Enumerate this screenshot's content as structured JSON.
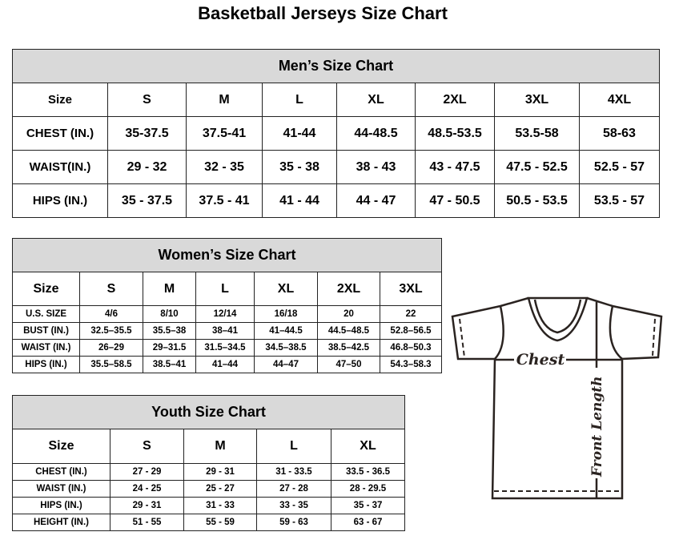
{
  "title": "Basketball Jerseys Size Chart",
  "men": {
    "title": "Men’s Size Chart",
    "header": [
      "Size",
      "S",
      "M",
      "L",
      "XL",
      "2XL",
      "3XL",
      "4XL"
    ],
    "rows": [
      [
        "CHEST (IN.)",
        "35-37.5",
        "37.5-41",
        "41-44",
        "44-48.5",
        "48.5-53.5",
        "53.5-58",
        "58-63"
      ],
      [
        "WAIST(IN.)",
        "29 - 32",
        "32 - 35",
        "35 - 38",
        "38 - 43",
        "43 - 47.5",
        "47.5 - 52.5",
        "52.5 - 57"
      ],
      [
        "HIPS (IN.)",
        "35 - 37.5",
        "37.5 - 41",
        "41 - 44",
        "44 - 47",
        "47 - 50.5",
        "50.5 - 53.5",
        "53.5 - 57"
      ]
    ]
  },
  "women": {
    "title": "Women’s Size Chart",
    "header": [
      "Size",
      "S",
      "M",
      "L",
      "XL",
      "2XL",
      "3XL"
    ],
    "rows": [
      [
        "U.S. SIZE",
        "4/6",
        "8/10",
        "12/14",
        "16/18",
        "20",
        "22"
      ],
      [
        "BUST (IN.)",
        "32.5–35.5",
        "35.5–38",
        "38–41",
        "41–44.5",
        "44.5–48.5",
        "52.8–56.5"
      ],
      [
        "WAIST (IN.)",
        "26–29",
        "29–31.5",
        "31.5–34.5",
        "34.5–38.5",
        "38.5–42.5",
        "46.8–50.3"
      ],
      [
        "HIPS (IN.)",
        "35.5–58.5",
        "38.5–41",
        "41–44",
        "44–47",
        "47–50",
        "54.3–58.3"
      ]
    ]
  },
  "youth": {
    "title": "Youth Size Chart",
    "header": [
      "Size",
      "S",
      "M",
      "L",
      "XL"
    ],
    "rows": [
      [
        "CHEST (IN.)",
        "27 - 29",
        "29 - 31",
        "31 - 33.5",
        "33.5 - 36.5"
      ],
      [
        "WAIST (IN.)",
        "24 - 25",
        "25 - 27",
        "27 - 28",
        "28 - 29.5"
      ],
      [
        "HIPS (IN.)",
        "29 - 31",
        "31 - 33",
        "33 - 35",
        "35 - 37"
      ],
      [
        "HEIGHT (IN.)",
        "51 - 55",
        "55 - 59",
        "59 - 63",
        "63 - 67"
      ]
    ]
  },
  "diagram": {
    "chest_label": "Chest",
    "length_label": "Front Length"
  }
}
